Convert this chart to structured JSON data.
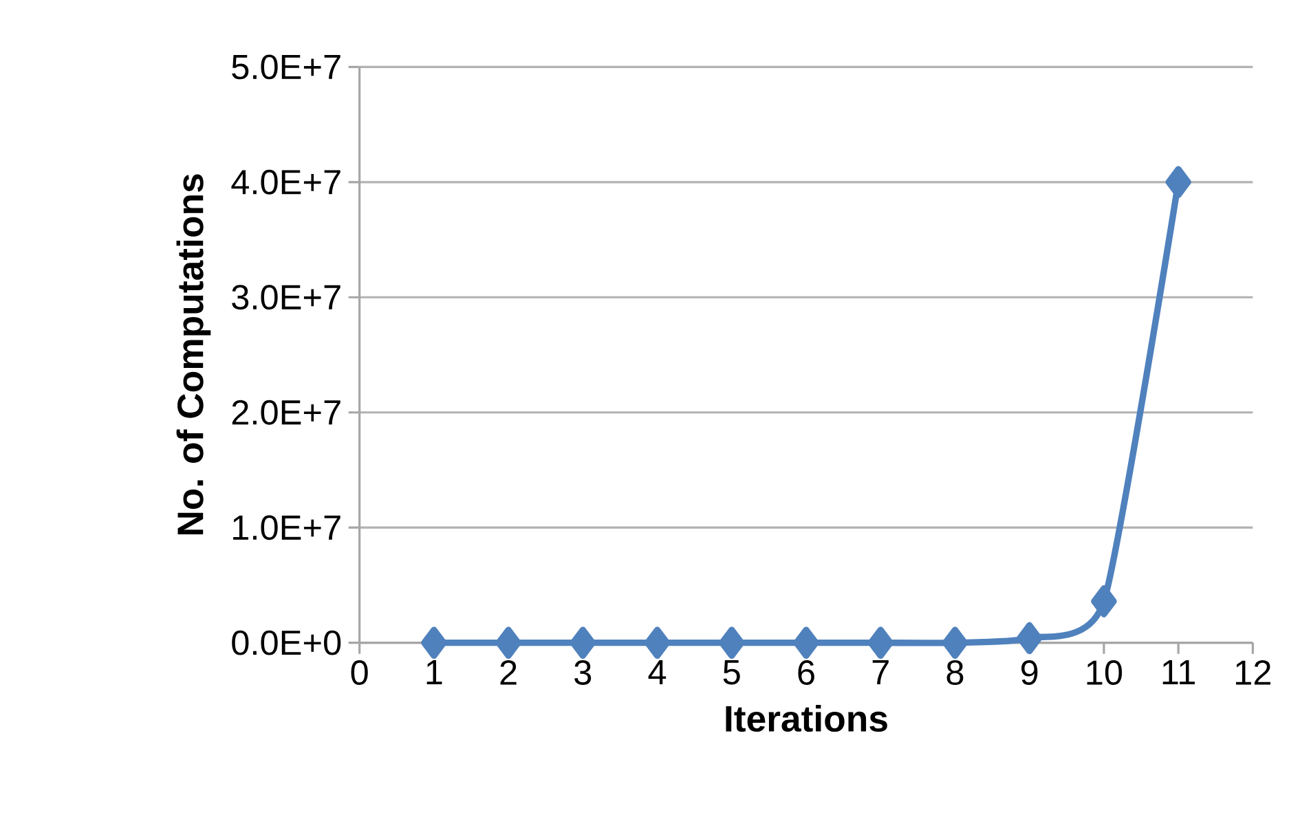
{
  "chart_data": {
    "type": "line",
    "xlabel": "Iterations",
    "ylabel": "No. of Computations",
    "x": [
      1,
      2,
      3,
      4,
      5,
      6,
      7,
      8,
      9,
      10,
      11
    ],
    "values": [
      0,
      0,
      0,
      0,
      0,
      0,
      0,
      0,
      400000,
      3600000,
      40000000
    ],
    "color": "#4f81bd",
    "xlim": [
      0,
      12
    ],
    "xticks": [
      0,
      1,
      2,
      3,
      4,
      5,
      6,
      7,
      8,
      9,
      10,
      11,
      12
    ],
    "ylim": [
      0,
      50000000
    ],
    "yticks": [
      {
        "value": 0,
        "label": "0.0E+0"
      },
      {
        "value": 10000000,
        "label": "1.0E+7"
      },
      {
        "value": 20000000,
        "label": "2.0E+7"
      },
      {
        "value": 30000000,
        "label": "3.0E+7"
      },
      {
        "value": 40000000,
        "label": "4.0E+7"
      },
      {
        "value": 50000000,
        "label": "5.0E+7"
      }
    ],
    "grid": "y",
    "marker": "diamond",
    "line_style": "solid"
  }
}
